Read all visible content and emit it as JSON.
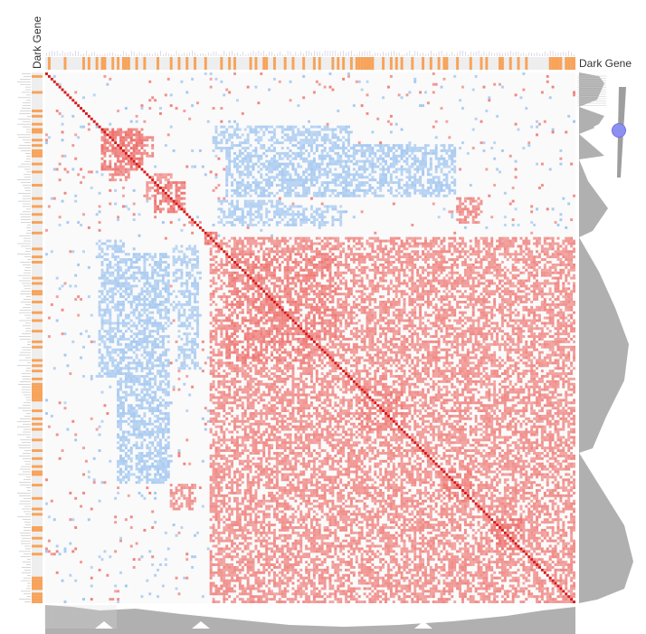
{
  "labels": {
    "column_track_title": "Dark Gene",
    "row_track_title": "Dark Gene"
  },
  "colors": {
    "positive": "#e8362f",
    "negative": "#6aa6ea",
    "diagonal": "#d81b1b",
    "dark_gene_mark": "#f7a35a",
    "track_bg": "#eeeeee",
    "dendrogram": "#b0b0b0",
    "zoom_handle": "#8e90f0"
  },
  "chart_data": {
    "type": "heatmap",
    "matrix_size": 200,
    "value_range": [
      -1,
      1
    ],
    "diagonal_value": 1,
    "legend": "none",
    "dark_gene_indicator": [
      0,
      1,
      0,
      0,
      0,
      0,
      0,
      1,
      0,
      0,
      0,
      0,
      0,
      0,
      1,
      0,
      1,
      0,
      0,
      1,
      0,
      1,
      1,
      0,
      0,
      1,
      0,
      1,
      0,
      1,
      1,
      1,
      0,
      0,
      1,
      0,
      0,
      1,
      0,
      0,
      0,
      0,
      1,
      0,
      0,
      0,
      0,
      1,
      0,
      0,
      1,
      0,
      0,
      1,
      0,
      0,
      1,
      0,
      0,
      0,
      1,
      0,
      0,
      0,
      0,
      0,
      1,
      0,
      0,
      1,
      0,
      1,
      0,
      0,
      0,
      0,
      0,
      1,
      0,
      1,
      0,
      0,
      1,
      1,
      0,
      0,
      1,
      0,
      0,
      0,
      1,
      0,
      0,
      1,
      0,
      0,
      0,
      1,
      0,
      0,
      0,
      1,
      0,
      1,
      0,
      0,
      0,
      0,
      1,
      0,
      1,
      0,
      1,
      0,
      0,
      1,
      0,
      1,
      1,
      1,
      1,
      1,
      1,
      1,
      0,
      0,
      0,
      1,
      0,
      0,
      1,
      0,
      1,
      0,
      1,
      0,
      0,
      0,
      1,
      0,
      0,
      0,
      1,
      0,
      0,
      1,
      0,
      0,
      1,
      0,
      1,
      1,
      0,
      0,
      0,
      1,
      0,
      0,
      0,
      0,
      1,
      0,
      0,
      0,
      1,
      0,
      1,
      0,
      0,
      0,
      0,
      1,
      1,
      0,
      0,
      1,
      0,
      0,
      1,
      0,
      0,
      1,
      0,
      0,
      0,
      0,
      0,
      0,
      0,
      0,
      1,
      1,
      1,
      1,
      1,
      0,
      1,
      1,
      1,
      1
    ],
    "blocks": [
      {
        "rows": [
          21,
          37
        ],
        "cols": [
          21,
          37
        ],
        "value": 0.8
      },
      {
        "rows": [
          41,
          53
        ],
        "cols": [
          41,
          53
        ],
        "value": 0.8
      },
      {
        "rows": [
          60,
          65
        ],
        "cols": [
          60,
          65
        ],
        "value": 0.8
      },
      {
        "rows": [
          62,
          200
        ],
        "cols": [
          62,
          200
        ],
        "value": 0.55
      },
      {
        "rows": [
          68,
          100
        ],
        "cols": [
          68,
          110
        ],
        "value": 0.7
      },
      {
        "rows": [
          118,
          135
        ],
        "cols": [
          118,
          135
        ],
        "value": 0.7
      },
      {
        "rows": [
          150,
          162
        ],
        "cols": [
          150,
          162
        ],
        "value": 0.75
      },
      {
        "rows": [
          168,
          180
        ],
        "cols": [
          168,
          180
        ],
        "value": 0.75
      },
      {
        "rows": [
          20,
          30
        ],
        "cols": [
          63,
          115
        ],
        "value": -0.5
      },
      {
        "rows": [
          30,
          46
        ],
        "cols": [
          93,
          100
        ],
        "value": -0.45
      },
      {
        "rows": [
          48,
          58
        ],
        "cols": [
          65,
          90
        ],
        "value": -0.45
      },
      {
        "rows": [
          68,
          155
        ],
        "cols": [
          27,
          47
        ],
        "value": -0.55
      },
      {
        "rows": [
          68,
          112
        ],
        "cols": [
          50,
          58
        ],
        "value": -0.5
      },
      {
        "rows": [
          26,
          41
        ],
        "cols": [
          24,
          32
        ],
        "value": 0.6
      },
      {
        "rows": [
          38,
          48
        ],
        "cols": [
          38,
          46
        ],
        "value": 0.5
      },
      {
        "rows": [
          47,
          57
        ],
        "cols": [
          155,
          165
        ],
        "value": 0.55
      }
    ]
  }
}
